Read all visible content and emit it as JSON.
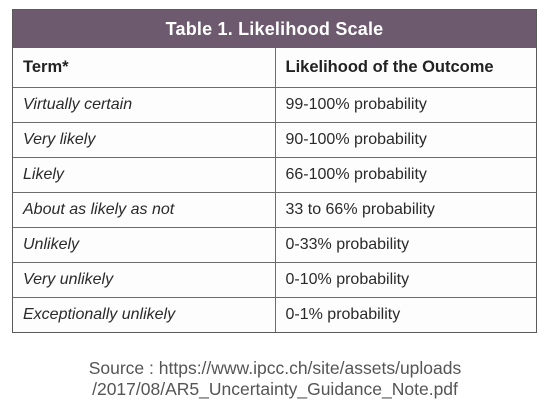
{
  "table": {
    "title": "Table 1. Likelihood Scale",
    "headers": [
      "Term*",
      "Likelihood of the Outcome"
    ],
    "rows": [
      {
        "term": "Virtually certain",
        "likelihood": "99-100% probability"
      },
      {
        "term": "Very likely",
        "likelihood": "90-100% probability"
      },
      {
        "term": "Likely",
        "likelihood": "66-100% probability"
      },
      {
        "term": "About as likely as not",
        "likelihood": "33 to 66% probability"
      },
      {
        "term": "Unlikely",
        "likelihood": "0-33% probability"
      },
      {
        "term": "Very unlikely",
        "likelihood": "0-10% probability"
      },
      {
        "term": "Exceptionally unlikely",
        "likelihood": "0-1% probability"
      }
    ]
  },
  "source": {
    "line1": "Source : https://www.ipcc.ch/site/assets/uploads",
    "line2": "/2017/08/AR5_Uncertainty_Guidance_Note.pdf"
  },
  "colors": {
    "title_bar": "#6d5a6e",
    "border": "#6c6c6c",
    "source_text": "#555555"
  }
}
